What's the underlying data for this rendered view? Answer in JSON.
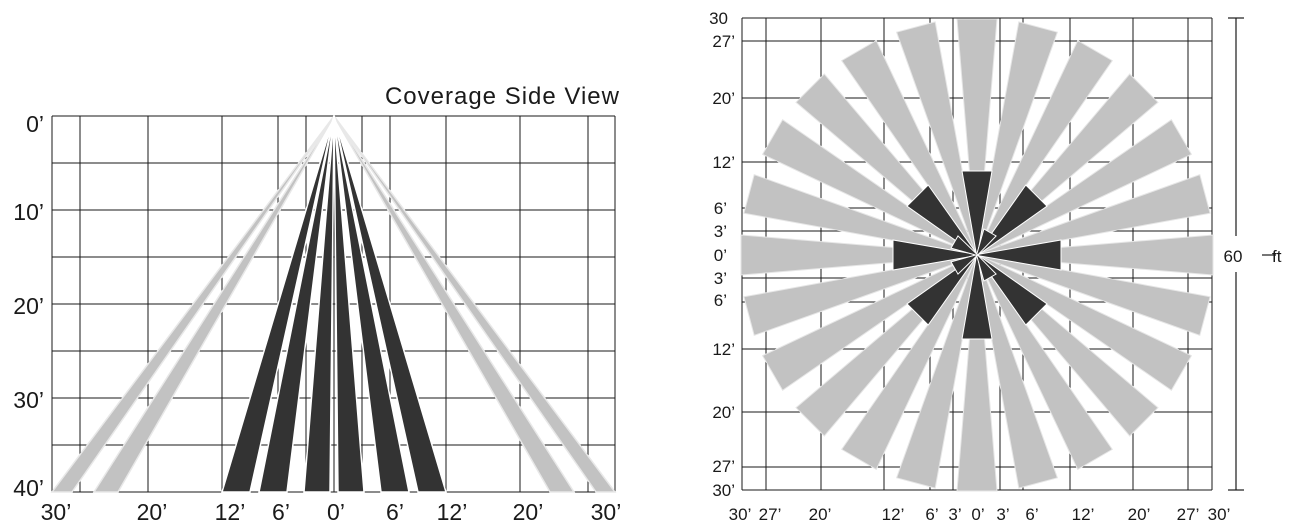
{
  "side_view": {
    "title": "Coverage Side View",
    "y_labels": [
      "0’",
      "10’",
      "20’",
      "30’",
      "40’"
    ],
    "x_labels": [
      "30’",
      "20’",
      "12’",
      "6’",
      "0’",
      "6’",
      "12’",
      "20’",
      "30’"
    ]
  },
  "top_view": {
    "y_labels": [
      "30",
      "27’",
      "20’",
      "12’",
      "6’",
      "3’",
      "0’",
      "3’",
      "6’",
      "12’",
      "20’",
      "27’",
      "30’"
    ],
    "x_labels": [
      "30’",
      "27’",
      "20’",
      "12’",
      "6’",
      "3’",
      "0’",
      "3’",
      "6’",
      "12’",
      "20’",
      "27’",
      "30’"
    ],
    "dimension_value": "60",
    "dimension_unit": "ft"
  },
  "colors": {
    "near_zone": "#333333",
    "far_zone": "#c2c2c2",
    "grid": "#1a1a1a"
  }
}
